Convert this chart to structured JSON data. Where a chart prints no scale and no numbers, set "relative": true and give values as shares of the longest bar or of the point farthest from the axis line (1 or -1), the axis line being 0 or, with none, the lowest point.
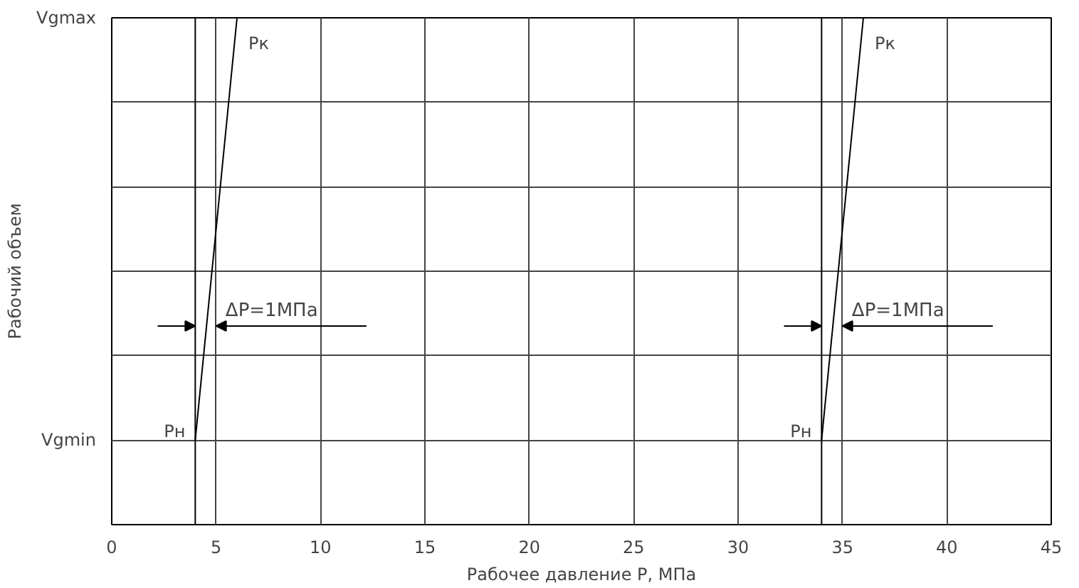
{
  "chart_data": {
    "type": "line",
    "xlabel": "Рабочее давление P, МПа",
    "ylabel": "Рабочий объем",
    "xlim": [
      0,
      45
    ],
    "xticks": [
      0,
      5,
      10,
      15,
      20,
      25,
      30,
      35,
      40,
      45
    ],
    "relative": true,
    "grid": true,
    "marker": "none",
    "line_style": "solid",
    "series": [
      {
        "color": "#000000",
        "x": [
          4,
          6
        ],
        "values": [
          0.167,
          1
        ]
      },
      {
        "color": "#000000",
        "x": [
          34,
          36
        ],
        "values": [
          0.167,
          1
        ]
      }
    ],
    "ref_lines": [
      {
        "axis": "x",
        "value": 4,
        "color": "#000000"
      },
      {
        "axis": "x",
        "value": 34,
        "color": "#000000"
      }
    ],
    "annotations": [
      "Vgmin",
      "Vgmax",
      {
        "text": "Pн",
        "x": 4,
        "y": 0.167
      },
      {
        "text": "Pк",
        "x": 6,
        "y": 1
      },
      {
        "text": "ΔP=1МПа",
        "x": 4.5,
        "y": 0.392
      },
      {
        "text": "Pн",
        "x": 34,
        "y": 0.167
      },
      {
        "text": "Pк",
        "x": 36,
        "y": 1
      },
      {
        "text": "ΔP=1МПа",
        "x": 34.5,
        "y": 0.392
      }
    ]
  }
}
